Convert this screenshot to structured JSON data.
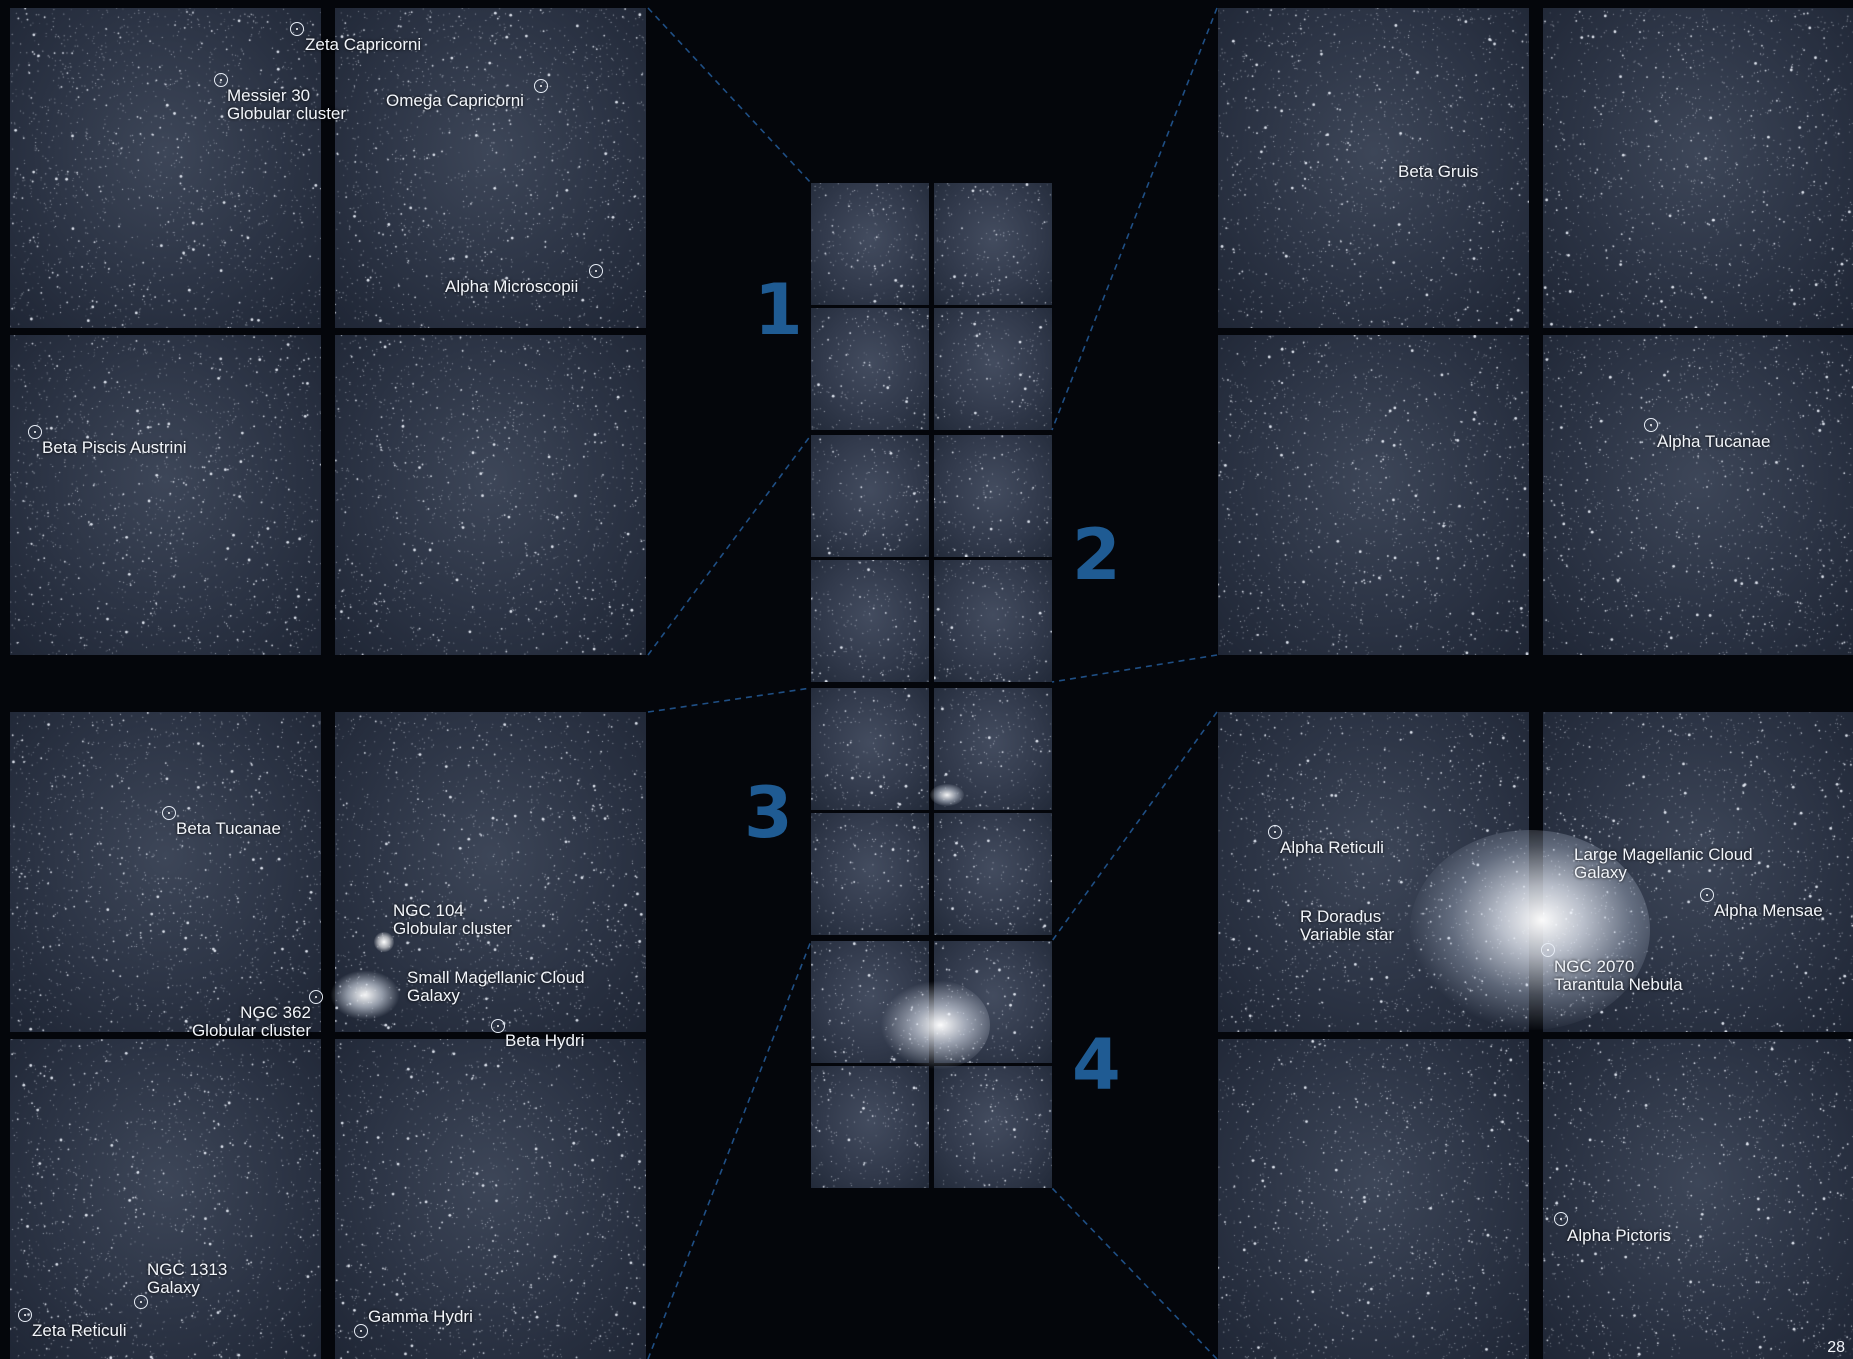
{
  "colors": {
    "sector_number": "#1f5b93",
    "label_text": "#f2f5fa",
    "connector_line": "#1f4f85",
    "background": "#04060b"
  },
  "quadrants": {
    "top_left": {
      "labels": {
        "zeta_capricorni": "Zeta Capricorni",
        "messier_30_line1": "Messier 30",
        "messier_30_line2": "Globular cluster",
        "omega_capricorni": "Omega Capricorni",
        "alpha_microscopii": "Alpha Microscopii",
        "beta_piscis_austrini": "Beta Piscis Austrini"
      }
    },
    "top_right": {
      "labels": {
        "beta_gruis": "Beta Gruis",
        "alpha_tucanae": "Alpha Tucanae"
      }
    },
    "bottom_left": {
      "labels": {
        "beta_tucanae": "Beta Tucanae",
        "ngc104_line1": "NGC 104",
        "ngc104_line2": "Globular cluster",
        "smc_line1": "Small Magellanic Cloud",
        "smc_line2": "Galaxy",
        "ngc362_line1": "NGC 362",
        "ngc362_line2": "Globular cluster",
        "beta_hydri": "Beta Hydri",
        "ngc1313_line1": "NGC 1313",
        "ngc1313_line2": "Galaxy",
        "zeta_reticuli": "Zeta Reticuli",
        "gamma_hydri": "Gamma Hydri"
      }
    },
    "bottom_right": {
      "labels": {
        "alpha_reticuli": "Alpha Reticuli",
        "lmc_line1": "Large Magellanic Cloud",
        "lmc_line2": "Galaxy",
        "alpha_mensae": "Alpha Mensae",
        "r_doradus_line1": "R Doradus",
        "r_doradus_line2": "Variable star",
        "ngc2070_line1": "NGC 2070",
        "ngc2070_line2": "Tarantula Nebula",
        "alpha_pictoris": "Alpha Pictoris"
      }
    }
  },
  "sectors": [
    "1",
    "2",
    "3",
    "4"
  ],
  "page_number": "28"
}
